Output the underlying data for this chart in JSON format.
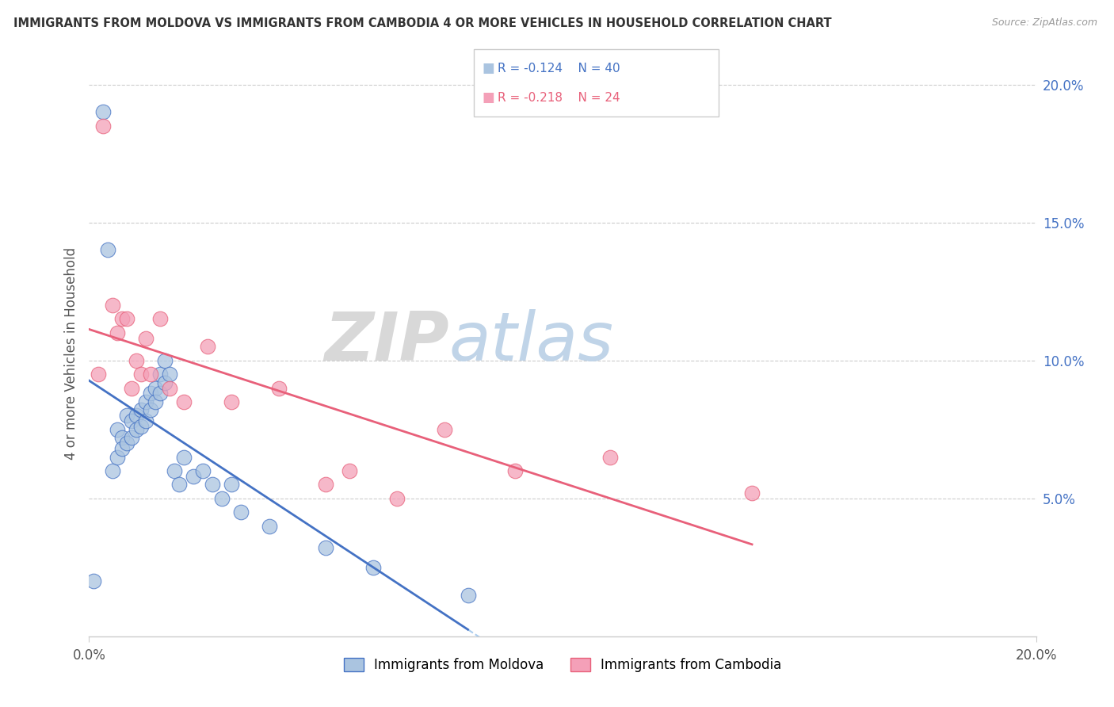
{
  "title": "IMMIGRANTS FROM MOLDOVA VS IMMIGRANTS FROM CAMBODIA 4 OR MORE VEHICLES IN HOUSEHOLD CORRELATION CHART",
  "source": "Source: ZipAtlas.com",
  "ylabel": "4 or more Vehicles in Household",
  "xmin": 0.0,
  "xmax": 0.2,
  "ymin": 0.0,
  "ymax": 0.205,
  "yticks": [
    0.05,
    0.1,
    0.15,
    0.2
  ],
  "ytick_labels": [
    "5.0%",
    "10.0%",
    "15.0%",
    "20.0%"
  ],
  "moldova_color": "#aac4e0",
  "cambodia_color": "#f4a0b8",
  "moldova_line_color": "#4472c4",
  "cambodia_line_color": "#e8607a",
  "trendline_dash_color": "#aaccee",
  "R_moldova": -0.124,
  "N_moldova": 40,
  "R_cambodia": -0.218,
  "N_cambodia": 24,
  "watermark_zip": "ZIP",
  "watermark_atlas": "atlas",
  "moldova_x": [
    0.001,
    0.003,
    0.004,
    0.005,
    0.006,
    0.006,
    0.007,
    0.007,
    0.008,
    0.008,
    0.009,
    0.009,
    0.01,
    0.01,
    0.011,
    0.011,
    0.012,
    0.012,
    0.013,
    0.013,
    0.014,
    0.014,
    0.015,
    0.015,
    0.016,
    0.016,
    0.017,
    0.018,
    0.019,
    0.02,
    0.022,
    0.024,
    0.026,
    0.028,
    0.03,
    0.032,
    0.038,
    0.05,
    0.06,
    0.08
  ],
  "moldova_y": [
    0.02,
    0.19,
    0.14,
    0.06,
    0.075,
    0.065,
    0.072,
    0.068,
    0.08,
    0.07,
    0.078,
    0.072,
    0.08,
    0.075,
    0.082,
    0.076,
    0.085,
    0.078,
    0.088,
    0.082,
    0.09,
    0.085,
    0.095,
    0.088,
    0.1,
    0.092,
    0.095,
    0.06,
    0.055,
    0.065,
    0.058,
    0.06,
    0.055,
    0.05,
    0.055,
    0.045,
    0.04,
    0.032,
    0.025,
    0.015
  ],
  "cambodia_x": [
    0.002,
    0.003,
    0.005,
    0.006,
    0.007,
    0.008,
    0.009,
    0.01,
    0.011,
    0.012,
    0.013,
    0.015,
    0.017,
    0.02,
    0.025,
    0.03,
    0.04,
    0.05,
    0.055,
    0.065,
    0.075,
    0.09,
    0.11,
    0.14
  ],
  "cambodia_y": [
    0.095,
    0.185,
    0.12,
    0.11,
    0.115,
    0.115,
    0.09,
    0.1,
    0.095,
    0.108,
    0.095,
    0.115,
    0.09,
    0.085,
    0.105,
    0.085,
    0.09,
    0.055,
    0.06,
    0.05,
    0.075,
    0.06,
    0.065,
    0.052
  ]
}
